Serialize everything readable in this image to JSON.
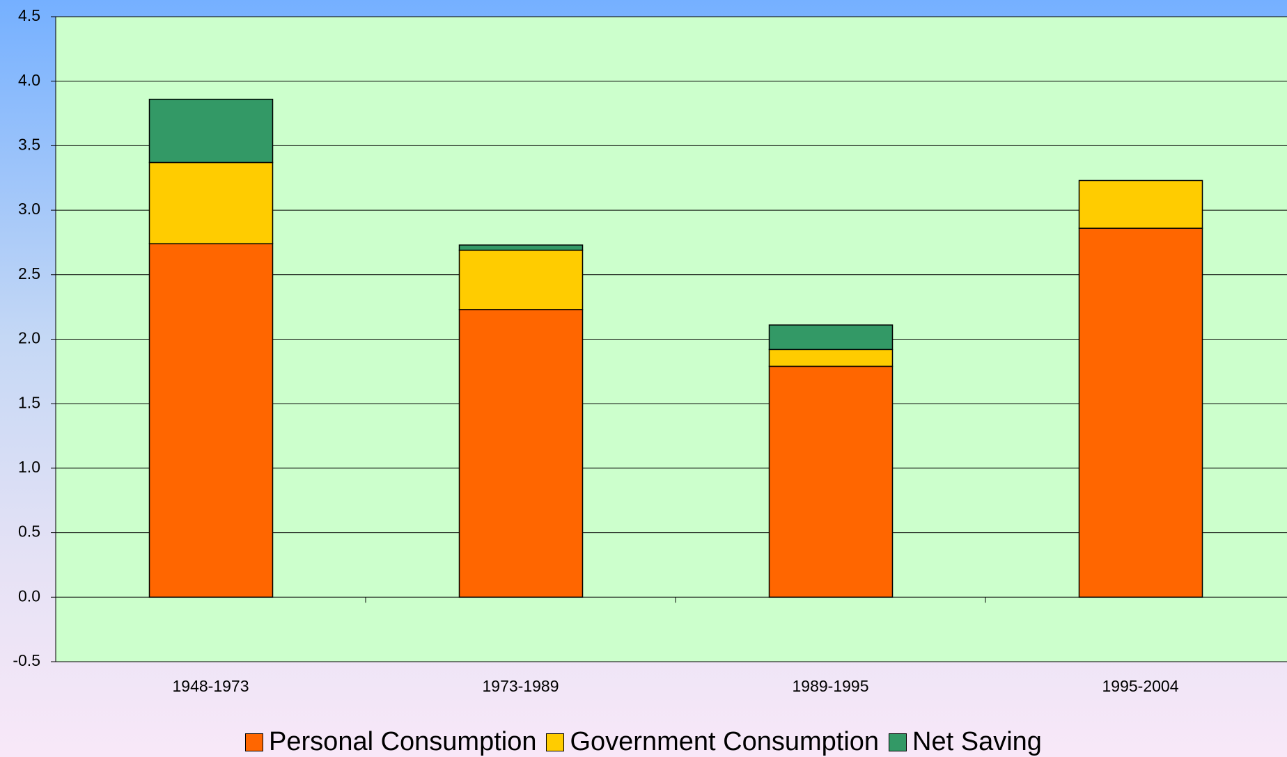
{
  "chart_data": {
    "type": "stacked-bar",
    "categories": [
      "1948-1973",
      "1973-1989",
      "1989-1995",
      "1995-2004"
    ],
    "series": [
      {
        "name": "Personal Consumption",
        "color": "#ff6600",
        "values": [
          2.74,
          2.23,
          1.79,
          2.86
        ]
      },
      {
        "name": "Government Consumption",
        "color": "#ffcc00",
        "values": [
          0.63,
          0.46,
          0.13,
          0.37
        ]
      },
      {
        "name": "Net Saving",
        "color": "#339966",
        "values": [
          0.49,
          0.04,
          0.19,
          0
        ]
      }
    ],
    "ylim": [
      -0.5,
      4.5
    ],
    "yticks": [
      -0.5,
      {
        "value": 0,
        "label": "0.0"
      },
      0.5,
      {
        "value": 1,
        "label": "1.0"
      },
      1.5,
      {
        "value": 2,
        "label": "2.0"
      },
      2.5,
      {
        "value": 3,
        "label": "3.0"
      },
      3.5,
      {
        "value": 4,
        "label": "4.0"
      },
      4.5
    ],
    "grid": true,
    "legend": "bottom"
  }
}
